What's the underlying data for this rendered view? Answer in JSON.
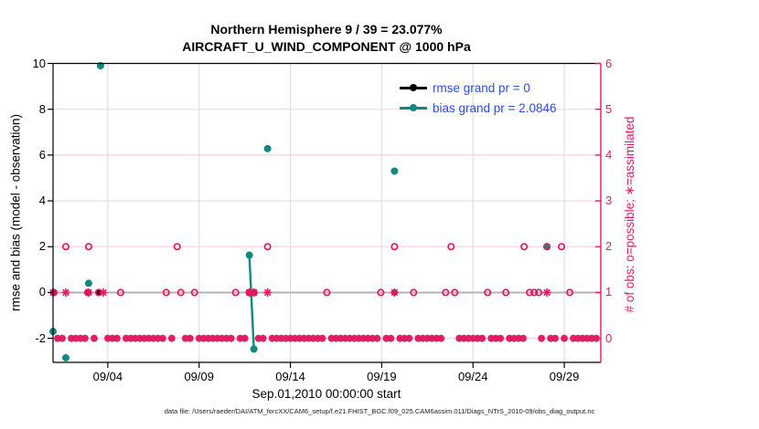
{
  "legend": {
    "items": [
      {
        "label": "rmse grand pr = 0",
        "color": "#000000"
      },
      {
        "label": "bias grand pr = 2.0846",
        "color": "#12897f"
      }
    ],
    "text_color": "#2b50d9"
  },
  "caption": {
    "text": "data file: /Users/raeder/DAI/ATM_forcXX/CAM6_setup/f.e21.FHIST_BGC.f09_025.CAM6assim.011/Diags_NTrS_2010-09/obs_diag_output.nc"
  },
  "chart_data": {
    "type": "scatter",
    "title": "Northern Hemisphere 9 / 39 = 23.077%",
    "subtitle": "AIRCRAFT_U_WIND_COMPONENT @ 1000 hPa",
    "xlabel": "Sep.01,2010 00:00:00 start",
    "ylabel_left": "rmse and bias (model - observation)",
    "ylabel_right": "# of obs: o=possible; ∗=assimilated",
    "x_domain_days": [
      1,
      31
    ],
    "x_ticks": [
      {
        "day": 4,
        "label": "09/04"
      },
      {
        "day": 9,
        "label": "09/09"
      },
      {
        "day": 14,
        "label": "09/14"
      },
      {
        "day": 19,
        "label": "09/19"
      },
      {
        "day": 24,
        "label": "09/24"
      },
      {
        "day": 29,
        "label": "09/29"
      }
    ],
    "ylim_left": [
      -3.05,
      10
    ],
    "yticks_left": [
      -2,
      0,
      2,
      4,
      6,
      8,
      10
    ],
    "yticks_right": [
      0,
      1,
      2,
      3,
      4,
      5,
      6
    ],
    "grand": {
      "rmse": 0,
      "bias": 2.0846
    },
    "series": {
      "rmse_zero_dot_days": [
        1.0,
        2.95,
        3.5,
        11.75,
        12.0,
        19.7
      ],
      "bias_points": [
        [
          1.0,
          -1.7
        ],
        [
          1.7,
          -2.85
        ],
        [
          2.95,
          0.4
        ],
        [
          3.6,
          9.9
        ],
        [
          11.75,
          1.63
        ],
        [
          12.0,
          -2.47
        ],
        [
          12.75,
          6.28
        ],
        [
          19.7,
          5.3
        ],
        [
          28.05,
          2.0
        ]
      ],
      "bias_segments": [
        [
          [
            11.75,
            1.63
          ],
          [
            12.0,
            -2.47
          ]
        ]
      ],
      "possible_count1_days": [
        1.05,
        2.9,
        3.5,
        4.7,
        7.2,
        8.0,
        8.75,
        11.0,
        11.75,
        12.0,
        16.0,
        18.95,
        20.75,
        22.5,
        23.0,
        24.8,
        25.8,
        27.1,
        27.35,
        27.6,
        29.3
      ],
      "possible_count2_days": [
        1.7,
        2.95,
        7.8,
        12.75,
        19.7,
        22.8,
        26.8,
        28.05,
        28.85
      ],
      "assimilated_count1_days": [
        1.0,
        1.7,
        2.95,
        3.75,
        11.75,
        12.0,
        12.75,
        19.7,
        28.05
      ],
      "zero_band": {
        "start_day": 1.0,
        "end_day": 30.75,
        "step_days": 0.25,
        "skip_days": [
          1.0,
          1.75,
          3.0,
          3.5,
          3.75,
          4.75,
          7.25,
          7.75,
          8.0,
          8.75,
          11.0,
          11.75,
          12.0,
          12.75,
          16.0,
          19.0,
          19.75,
          20.75,
          22.5,
          22.75,
          23.0,
          24.75,
          25.75,
          27.0,
          27.25,
          27.5,
          28.0,
          28.75,
          29.25
        ]
      }
    },
    "layout": {
      "grid": true,
      "legend_position": "top-right-inside"
    },
    "colors": {
      "crimson": "#e31a62",
      "teal": "#12897f",
      "black": "#000000",
      "grid_pink": "#f5cfdc",
      "grid_gray": "#d9d9d9",
      "zero_line_gray": "#b3b3b3"
    }
  }
}
